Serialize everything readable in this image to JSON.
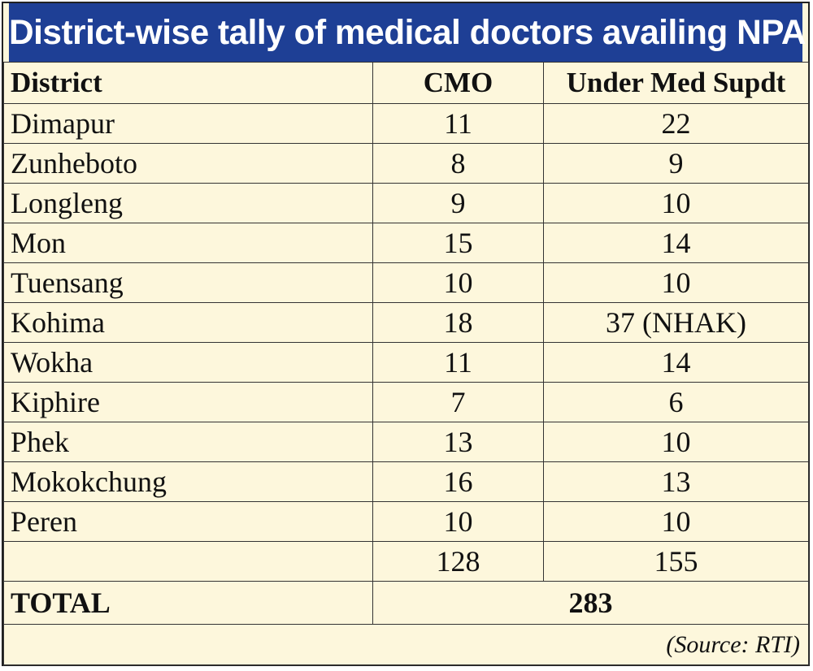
{
  "title": "District-wise tally of medical doctors availing NPA",
  "headers": {
    "district": "District",
    "cmo": "CMO",
    "under_med_supdt": "Under Med Supdt"
  },
  "rows": [
    {
      "district": "Dimapur",
      "cmo": "11",
      "ums": "22"
    },
    {
      "district": "Zunheboto",
      "cmo": "8",
      "ums": "9"
    },
    {
      "district": "Longleng",
      "cmo": "9",
      "ums": "10"
    },
    {
      "district": "Mon",
      "cmo": "15",
      "ums": "14"
    },
    {
      "district": "Tuensang",
      "cmo": "10",
      "ums": "10"
    },
    {
      "district": "Kohima",
      "cmo": "18",
      "ums": "37 (NHAK)"
    },
    {
      "district": "Wokha",
      "cmo": "11",
      "ums": "14"
    },
    {
      "district": "Kiphire",
      "cmo": "7",
      "ums": "6"
    },
    {
      "district": "Phek",
      "cmo": "13",
      "ums": "10"
    },
    {
      "district": "Mokokchung",
      "cmo": "16",
      "ums": "13"
    },
    {
      "district": "Peren",
      "cmo": "10",
      "ums": "10"
    }
  ],
  "subtotals": {
    "cmo": "128",
    "ums": "155"
  },
  "total": {
    "label": "TOTAL",
    "value": "283"
  },
  "source": "(Source: RTI)",
  "colors": {
    "title_bg": "#1e3f95",
    "title_text": "#ffffff",
    "table_bg": "#fdf7dc",
    "border": "#333333"
  }
}
